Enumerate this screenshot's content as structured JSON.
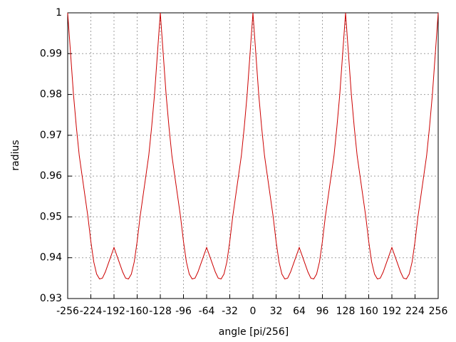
{
  "chart_data": {
    "type": "line",
    "xlabel": "angle [pi/256]",
    "ylabel": "radius",
    "xlim": [
      -256,
      256
    ],
    "ylim": [
      0.93,
      1
    ],
    "xticks": [
      -256,
      -224,
      -192,
      -160,
      -128,
      -96,
      -64,
      -32,
      0,
      32,
      64,
      96,
      128,
      160,
      192,
      224,
      256
    ],
    "yticks": [
      0.93,
      0.94,
      0.95,
      0.96,
      0.97,
      0.98,
      0.99,
      1
    ],
    "grid": true,
    "x": [
      -256,
      -252,
      -248,
      -244,
      -240,
      -236,
      -232,
      -228,
      -224,
      -220,
      -216,
      -212,
      -208,
      -204,
      -200,
      -196,
      -192,
      -188,
      -184,
      -180,
      -176,
      -172,
      -168,
      -164,
      -160,
      -156,
      -152,
      -148,
      -144,
      -140,
      -136,
      -132,
      -128,
      -124,
      -120,
      -116,
      -112,
      -108,
      -104,
      -100,
      -96,
      -92,
      -88,
      -84,
      -80,
      -76,
      -72,
      -68,
      -64,
      -60,
      -56,
      -52,
      -48,
      -44,
      -40,
      -36,
      -32,
      -28,
      -24,
      -20,
      -16,
      -12,
      -8,
      -4,
      0,
      4,
      8,
      12,
      16,
      20,
      24,
      28,
      32,
      36,
      40,
      44,
      48,
      52,
      56,
      60,
      64,
      68,
      72,
      76,
      80,
      84,
      88,
      92,
      96,
      100,
      104,
      108,
      112,
      116,
      120,
      124,
      128,
      132,
      136,
      140,
      144,
      148,
      152,
      156,
      160,
      164,
      168,
      172,
      176,
      180,
      184,
      188,
      192,
      196,
      200,
      204,
      208,
      212,
      216,
      220,
      224,
      228,
      232,
      236,
      240,
      244,
      248,
      252,
      256
    ],
    "series": [
      {
        "color": "#cc0000",
        "values": [
          1,
          0.99,
          0.98,
          0.972,
          0.965,
          0.96,
          0.955,
          0.95,
          0.944,
          0.939,
          0.936,
          0.9348,
          0.935,
          0.9365,
          0.9385,
          0.9405,
          0.9425,
          0.9405,
          0.9385,
          0.9365,
          0.935,
          0.9348,
          0.936,
          0.939,
          0.944,
          0.95,
          0.955,
          0.96,
          0.965,
          0.972,
          0.98,
          0.99,
          1,
          0.99,
          0.98,
          0.972,
          0.965,
          0.96,
          0.955,
          0.95,
          0.944,
          0.939,
          0.936,
          0.9348,
          0.935,
          0.9365,
          0.9385,
          0.9405,
          0.9425,
          0.9405,
          0.9385,
          0.9365,
          0.935,
          0.9348,
          0.936,
          0.939,
          0.944,
          0.95,
          0.955,
          0.96,
          0.965,
          0.972,
          0.98,
          0.99,
          1,
          0.99,
          0.98,
          0.972,
          0.965,
          0.96,
          0.955,
          0.95,
          0.944,
          0.939,
          0.936,
          0.9348,
          0.935,
          0.9365,
          0.9385,
          0.9405,
          0.9425,
          0.9405,
          0.9385,
          0.9365,
          0.935,
          0.9348,
          0.936,
          0.939,
          0.944,
          0.95,
          0.955,
          0.96,
          0.965,
          0.972,
          0.98,
          0.99,
          1,
          0.99,
          0.98,
          0.972,
          0.965,
          0.96,
          0.955,
          0.95,
          0.944,
          0.939,
          0.936,
          0.9348,
          0.935,
          0.9365,
          0.9385,
          0.9405,
          0.9425,
          0.9405,
          0.9385,
          0.9365,
          0.935,
          0.9348,
          0.936,
          0.939,
          0.944,
          0.95,
          0.955,
          0.96,
          0.965,
          0.972,
          0.98,
          0.99,
          1
        ]
      }
    ]
  }
}
